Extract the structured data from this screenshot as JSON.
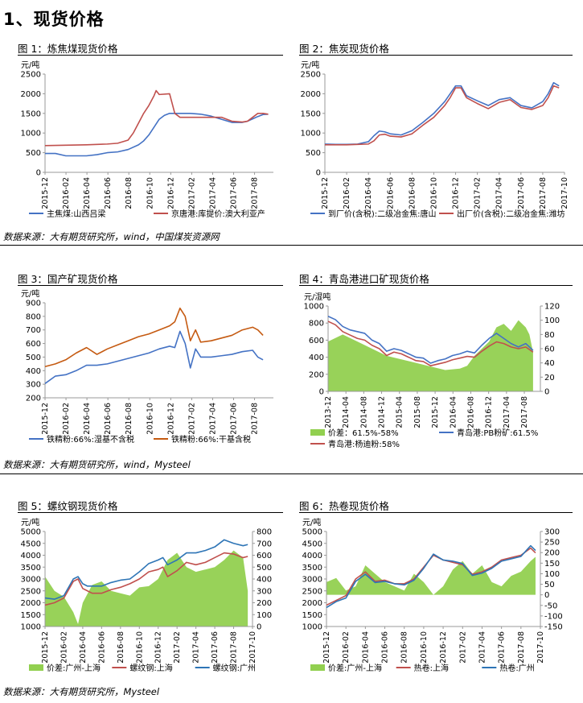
{
  "heading": "1、现货价格",
  "sources": [
    "数据来源：大有期货研究所，wind，中国煤炭资源网",
    "数据来源：大有期货研究所，wind，Mysteel",
    "数据来源：大有期货研究所，Mysteel"
  ],
  "chart_data": [
    {
      "id": "fig1",
      "title": "图 1：炼焦煤现货价格",
      "type": "line",
      "unit": "元/吨",
      "ylim": [
        0,
        2500
      ],
      "yticks": [
        0,
        500,
        1000,
        1500,
        2000,
        2500
      ],
      "xlim": [
        0,
        22
      ],
      "xticks": [
        "2015-12",
        "2016-02",
        "2016-04",
        "2016-06",
        "2016-08",
        "2016-10",
        "2016-12",
        "2017-02",
        "2017-04",
        "2017-06",
        "2017-08"
      ],
      "legend": "bottom",
      "series": [
        {
          "name": "主焦煤:山西吕梁",
          "color": "#4472c4",
          "x": [
            0,
            1,
            2,
            3,
            4,
            5,
            6,
            7,
            8,
            9,
            9.5,
            10,
            10.5,
            11,
            11.5,
            12,
            13,
            14,
            15,
            16,
            17,
            18,
            19,
            19.5,
            20,
            20.5,
            21,
            21.5
          ],
          "y": [
            480,
            480,
            420,
            420,
            420,
            450,
            500,
            520,
            580,
            700,
            800,
            950,
            1150,
            1350,
            1450,
            1500,
            1500,
            1500,
            1480,
            1430,
            1350,
            1270,
            1270,
            1300,
            1360,
            1420,
            1470,
            1480
          ]
        },
        {
          "name": "京唐港:库提价:澳大利亚产",
          "color": "#c0504d",
          "x": [
            0,
            2,
            4,
            6,
            7,
            8,
            8.5,
            9,
            9.5,
            10,
            10.5,
            10.7,
            11,
            12,
            12.5,
            13,
            14,
            15,
            16,
            17,
            18,
            19,
            19.5,
            20,
            20.5,
            21,
            21.5
          ],
          "y": [
            680,
            690,
            700,
            720,
            740,
            820,
            1000,
            1250,
            1500,
            1700,
            1950,
            2080,
            1980,
            2000,
            1500,
            1400,
            1400,
            1400,
            1400,
            1400,
            1300,
            1280,
            1300,
            1400,
            1500,
            1500,
            1480
          ]
        }
      ]
    },
    {
      "id": "fig2",
      "title": "图 2：焦炭现货价格",
      "type": "line",
      "unit": "元/吨",
      "ylim": [
        0,
        2500
      ],
      "yticks": [
        0,
        500,
        1000,
        1500,
        2000,
        2500
      ],
      "xlim": [
        0,
        22
      ],
      "xticks": [
        "2015-12",
        "2016-02",
        "2016-04",
        "2016-06",
        "2016-08",
        "2016-10",
        "2016-12",
        "2017-02",
        "2017-04",
        "2017-06",
        "2017-08",
        "2017-10"
      ],
      "legend": "bottom",
      "series": [
        {
          "name": "到厂价(含税):二级冶金焦:唐山",
          "color": "#4472c4",
          "x": [
            0,
            1,
            2,
            3,
            4,
            4.5,
            5,
            5.5,
            6,
            7,
            8,
            9,
            10,
            11,
            11.5,
            12,
            12.5,
            13,
            14,
            15,
            16,
            17,
            18,
            19,
            20,
            20.5,
            21,
            21.5
          ],
          "y": [
            720,
            710,
            710,
            720,
            780,
            930,
            1050,
            1030,
            980,
            950,
            1060,
            1270,
            1500,
            1800,
            2000,
            2200,
            2200,
            1950,
            1820,
            1700,
            1850,
            1900,
            1700,
            1640,
            1800,
            2000,
            2280,
            2200
          ]
        },
        {
          "name": "出厂价(含税):二级冶金焦:潍坊",
          "color": "#c0504d",
          "x": [
            0,
            1,
            2,
            3,
            4,
            4.5,
            5,
            5.5,
            6,
            7,
            8,
            9,
            10,
            11,
            11.5,
            12,
            12.5,
            13,
            14,
            15,
            16,
            17,
            18,
            19,
            20,
            20.5,
            21,
            21.5
          ],
          "y": [
            700,
            700,
            700,
            710,
            720,
            800,
            950,
            970,
            920,
            900,
            980,
            1200,
            1400,
            1700,
            1900,
            2150,
            2150,
            1900,
            1750,
            1620,
            1780,
            1850,
            1650,
            1600,
            1700,
            1900,
            2200,
            2150
          ]
        }
      ]
    },
    {
      "id": "fig3",
      "title": "图 3：国产矿现货价格",
      "type": "line",
      "unit": "元/吨",
      "ylim": [
        200,
        900
      ],
      "yticks": [
        200,
        300,
        400,
        500,
        600,
        700,
        800,
        900
      ],
      "xlim": [
        0,
        22
      ],
      "xticks": [
        "2015-12",
        "2016-02",
        "2016-04",
        "2016-06",
        "2016-08",
        "2016-10",
        "2016-12",
        "2017-02",
        "2017-04",
        "2017-06",
        "2017-08"
      ],
      "legend": "bottom",
      "series": [
        {
          "name": "铁精粉:66%:湿基不含税",
          "color": "#4472c4",
          "x": [
            0,
            1,
            2,
            3,
            4,
            5,
            6,
            7,
            8,
            9,
            10,
            11,
            12,
            12.5,
            13,
            13.5,
            14,
            14.5,
            15,
            16,
            17,
            18,
            19,
            20,
            20.5,
            21
          ],
          "y": [
            305,
            360,
            370,
            400,
            440,
            440,
            450,
            470,
            490,
            510,
            530,
            560,
            580,
            570,
            690,
            600,
            420,
            560,
            500,
            500,
            510,
            520,
            540,
            550,
            500,
            480
          ]
        },
        {
          "name": "铁精粉:66%:干基含税",
          "color": "#c55a11",
          "x": [
            0,
            1,
            2,
            3,
            4,
            5,
            6,
            7,
            8,
            9,
            10,
            11,
            12,
            12.5,
            13,
            13.5,
            14,
            14.5,
            15,
            16,
            17,
            18,
            19,
            20,
            20.5,
            21
          ],
          "y": [
            430,
            450,
            480,
            530,
            570,
            520,
            560,
            590,
            620,
            650,
            670,
            700,
            730,
            760,
            860,
            800,
            620,
            700,
            610,
            620,
            640,
            660,
            700,
            720,
            700,
            660
          ]
        }
      ]
    },
    {
      "id": "fig4",
      "title": "图 4：青岛港进口矿现货价格",
      "type": "line",
      "unit": "元/湿吨",
      "ylim": [
        0,
        1000
      ],
      "yticks": [
        0,
        200,
        400,
        600,
        800,
        1000
      ],
      "y2lim": [
        0,
        120
      ],
      "y2ticks": [
        0,
        20,
        40,
        60,
        80,
        100,
        120
      ],
      "xlim": [
        0,
        29
      ],
      "xticks": [
        "2013-12",
        "2014-04",
        "2014-08",
        "2014-12",
        "2015-04",
        "2015-08",
        "2015-12",
        "2016-04",
        "2016-08",
        "2016-12",
        "2017-04",
        "2017-08"
      ],
      "legend": "bottom",
      "series": [
        {
          "name": "价差：61.5%-58%",
          "color": "#92d050",
          "axis": "right",
          "kind": "area",
          "x": [
            0,
            2,
            4,
            6,
            8,
            10,
            12,
            14,
            16,
            18,
            19,
            20,
            22,
            23,
            24,
            25,
            26,
            27,
            27.5,
            28
          ],
          "y": [
            70,
            80,
            70,
            60,
            50,
            45,
            40,
            35,
            30,
            32,
            36,
            50,
            70,
            90,
            95,
            85,
            100,
            90,
            80,
            55
          ]
        },
        {
          "name": "青岛港:PB粉矿:61.5%",
          "color": "#4472c4",
          "x": [
            0,
            1,
            2,
            3,
            4,
            5,
            6,
            7,
            8,
            9,
            10,
            11,
            12,
            13,
            14,
            15,
            16,
            17,
            18,
            19,
            20,
            21,
            22,
            23,
            24,
            25,
            26,
            27,
            28
          ],
          "y": [
            880,
            840,
            760,
            720,
            700,
            680,
            600,
            560,
            470,
            500,
            480,
            440,
            400,
            390,
            330,
            360,
            380,
            420,
            440,
            470,
            450,
            540,
            620,
            680,
            620,
            560,
            520,
            560,
            480
          ]
        },
        {
          "name": "青岛港:杨迪粉:58%",
          "color": "#c0504d",
          "x": [
            0,
            1,
            2,
            3,
            4,
            5,
            6,
            7,
            8,
            9,
            10,
            11,
            12,
            13,
            14,
            15,
            16,
            17,
            18,
            19,
            20,
            21,
            22,
            23,
            24,
            25,
            26,
            27,
            28
          ],
          "y": [
            820,
            780,
            700,
            660,
            620,
            600,
            540,
            500,
            420,
            460,
            440,
            400,
            360,
            350,
            300,
            320,
            340,
            370,
            390,
            410,
            400,
            470,
            530,
            580,
            560,
            520,
            500,
            520,
            460
          ]
        }
      ]
    },
    {
      "id": "fig5",
      "title": "图 5：螺纹钢现货价格",
      "type": "line",
      "unit": "元/吨",
      "ylim": [
        1000,
        5000
      ],
      "yticks": [
        1000,
        1500,
        2000,
        2500,
        3000,
        3500,
        4000,
        4500,
        5000
      ],
      "y2lim": [
        0,
        800
      ],
      "y2ticks": [
        0,
        100,
        200,
        300,
        400,
        500,
        600,
        700,
        800
      ],
      "xlim": [
        0,
        22
      ],
      "xticks": [
        "2015-12",
        "2016-02",
        "2016-04",
        "2016-06",
        "2016-08",
        "2016-10",
        "2016-12",
        "2017-02",
        "2017-04",
        "2017-06",
        "2017-08",
        "2017-10"
      ],
      "legend": "bottom",
      "series": [
        {
          "name": "价差:广州-上海",
          "color": "#92d050",
          "axis": "right",
          "kind": "area",
          "x": [
            0,
            1,
            2,
            3,
            3.5,
            4,
            5,
            6,
            7,
            8,
            9,
            10,
            11,
            12,
            13,
            14,
            15,
            16,
            17,
            18,
            19,
            20,
            21,
            21.5
          ],
          "y": [
            420,
            300,
            250,
            120,
            20,
            200,
            350,
            380,
            300,
            280,
            260,
            330,
            340,
            400,
            560,
            620,
            500,
            460,
            480,
            500,
            560,
            640,
            580,
            300
          ]
        },
        {
          "name": "螺纹钢:上海",
          "color": "#c0504d",
          "x": [
            0,
            1,
            2,
            3,
            3.5,
            4,
            4.5,
            5,
            6,
            7,
            8,
            9,
            10,
            11,
            12,
            12.5,
            13,
            14,
            15,
            16,
            17,
            18,
            19,
            20,
            21,
            21.5
          ],
          "y": [
            1900,
            2000,
            2200,
            2900,
            3000,
            2600,
            2500,
            2400,
            2400,
            2550,
            2650,
            2800,
            3000,
            3300,
            3400,
            3500,
            3100,
            3350,
            3700,
            3600,
            3700,
            3900,
            4100,
            4050,
            3900,
            3950
          ]
        },
        {
          "name": "螺纹钢:广州",
          "color": "#2e75b6",
          "x": [
            0,
            1,
            2,
            3,
            3.5,
            4,
            4.5,
            5,
            6,
            7,
            8,
            9,
            10,
            11,
            12,
            12.5,
            13,
            14,
            15,
            16,
            17,
            18,
            19,
            20,
            21,
            21.5
          ],
          "y": [
            2200,
            2150,
            2300,
            3000,
            3100,
            2800,
            2700,
            2700,
            2700,
            2850,
            2950,
            3000,
            3300,
            3650,
            3800,
            3900,
            3600,
            3800,
            4100,
            4100,
            4200,
            4350,
            4650,
            4500,
            4400,
            4450
          ]
        }
      ]
    },
    {
      "id": "fig6",
      "title": "图 6：热卷现货价格",
      "type": "line",
      "unit": "元/吨",
      "ylim": [
        1000,
        5000
      ],
      "yticks": [
        1000,
        1500,
        2000,
        2500,
        3000,
        3500,
        4000,
        4500,
        5000
      ],
      "y2lim": [
        -150,
        300
      ],
      "y2ticks": [
        -150,
        -100,
        -50,
        0,
        50,
        100,
        150,
        200,
        250,
        300
      ],
      "xlim": [
        0,
        22
      ],
      "xticks": [
        "2015-12",
        "2016-02",
        "2016-04",
        "2016-06",
        "2016-08",
        "2016-10",
        "2016-12",
        "2017-02",
        "2017-04",
        "2017-06",
        "2017-08",
        "2017-10"
      ],
      "legend": "bottom",
      "series": [
        {
          "name": "价差:广州-上海",
          "color": "#92d050",
          "axis": "right",
          "kind": "area",
          "x": [
            0,
            1,
            2,
            3,
            4,
            5,
            6,
            7,
            8,
            9,
            10,
            11,
            12,
            13,
            14,
            15,
            16,
            17,
            18,
            19,
            20,
            21,
            21.5
          ],
          "y": [
            60,
            80,
            20,
            40,
            140,
            100,
            60,
            40,
            20,
            100,
            60,
            0,
            40,
            120,
            160,
            100,
            140,
            60,
            40,
            90,
            110,
            160,
            180
          ]
        },
        {
          "name": "热卷:上海",
          "color": "#c0504d",
          "x": [
            0,
            1,
            2,
            3,
            4,
            5,
            6,
            7,
            8,
            9,
            10,
            11,
            12,
            13,
            14,
            15,
            16,
            17,
            18,
            19,
            20,
            21,
            21.5
          ],
          "y": [
            1900,
            2100,
            2300,
            3000,
            3300,
            2900,
            2950,
            2800,
            2800,
            3000,
            3500,
            4000,
            3800,
            3700,
            3600,
            3200,
            3300,
            3500,
            3800,
            3900,
            4000,
            4300,
            4100
          ]
        },
        {
          "name": "热卷:广州",
          "color": "#2e75b6",
          "x": [
            0,
            1,
            2,
            3,
            4,
            5,
            6,
            7,
            8,
            9,
            10,
            11,
            12,
            13,
            14,
            15,
            16,
            17,
            18,
            19,
            20,
            21,
            21.5
          ],
          "y": [
            1800,
            2050,
            2200,
            2900,
            3200,
            2850,
            2900,
            2800,
            2750,
            2950,
            3450,
            4050,
            3800,
            3750,
            3650,
            3150,
            3250,
            3450,
            3750,
            3850,
            3950,
            4400,
            4200
          ]
        }
      ]
    }
  ]
}
